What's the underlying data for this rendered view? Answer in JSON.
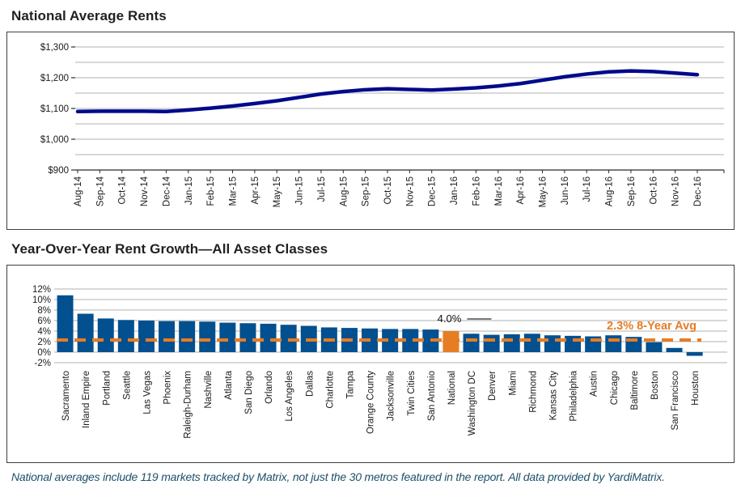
{
  "page": {
    "footnote": "National averages include 119 markets tracked by Matrix, not just the 30 metros featured in the report. All data provided by YardiMatrix."
  },
  "colors": {
    "line_series": "#000a8c",
    "bar_fill": "#02508f",
    "accent_orange": "#e67d23",
    "gridline": "#d8d8d8",
    "axis_line": "#2b2b2b",
    "axis_text": "#1a1a1a",
    "annotation_text": "#111111",
    "footnote_text": "#1d5068"
  },
  "chart_data": [
    {
      "type": "line",
      "title": "National Average Rents",
      "x": [
        "Aug-14",
        "Sep-14",
        "Oct-14",
        "Nov-14",
        "Dec-14",
        "Jan-15",
        "Feb-15",
        "Mar-15",
        "Apr-15",
        "May-15",
        "Jun-15",
        "Jul-15",
        "Aug-15",
        "Sep-15",
        "Oct-15",
        "Nov-15",
        "Dec-15",
        "Jan-16",
        "Feb-16",
        "Mar-16",
        "Apr-16",
        "May-16",
        "Jun-16",
        "Jul-16",
        "Aug-16",
        "Sep-16",
        "Oct-16",
        "Nov-16",
        "Dec-16"
      ],
      "values": [
        1090,
        1091,
        1091,
        1091,
        1090,
        1095,
        1101,
        1108,
        1116,
        1125,
        1136,
        1147,
        1155,
        1161,
        1164,
        1162,
        1160,
        1163,
        1167,
        1173,
        1181,
        1192,
        1203,
        1212,
        1219,
        1222,
        1220,
        1215,
        1210
      ],
      "ylim": [
        900,
        1300
      ],
      "grid_minor_step": 50,
      "yticks": [
        [
          900,
          "$900"
        ],
        [
          1000,
          "$1,000"
        ],
        [
          1100,
          "$1,100"
        ],
        [
          1200,
          "$1,200"
        ],
        [
          1300,
          "$1,300"
        ]
      ],
      "grid": true,
      "legend": "none"
    },
    {
      "type": "bar",
      "title": "Year-Over-Year Rent Growth—All Asset Classes",
      "categories": [
        "Sacramento",
        "Inland Empire",
        "Portland",
        "Seattle",
        "Las Vegas",
        "Phoenix",
        "Raleigh-Durham",
        "Nashville",
        "Atlanta",
        "San Diego",
        "Orlando",
        "Los Angeles",
        "Dallas",
        "Charlotte",
        "Tampa",
        "Orange County",
        "Jacksonville",
        "Twin Cities",
        "San Antonio",
        "National",
        "Washington DC",
        "Denver",
        "Miami",
        "Richmond",
        "Kansas City",
        "Philadelphia",
        "Austin",
        "Chicago",
        "Baltimore",
        "Boston",
        "San Francisco",
        "Houston"
      ],
      "values": [
        10.8,
        7.3,
        6.4,
        6.1,
        6.0,
        5.9,
        5.9,
        5.8,
        5.6,
        5.5,
        5.4,
        5.2,
        5.0,
        4.7,
        4.6,
        4.5,
        4.4,
        4.4,
        4.3,
        4.0,
        3.5,
        3.3,
        3.4,
        3.5,
        3.2,
        3.1,
        3.0,
        3.2,
        2.9,
        1.9,
        0.8,
        -0.7
      ],
      "highlight_category": "National",
      "ylim": [
        -2,
        12
      ],
      "yticks": [
        [
          12,
          "12%"
        ],
        [
          10,
          "10%"
        ],
        [
          8,
          "8%"
        ],
        [
          6,
          "6%"
        ],
        [
          4,
          "4%"
        ],
        [
          2,
          "2%"
        ],
        [
          0,
          "0%"
        ],
        [
          -2,
          "-2%"
        ]
      ],
      "grid": true,
      "legend": "none",
      "annotations": {
        "highlight_value_label": "4.0%",
        "avg_line_value": 2.3,
        "avg_line_label": "2.3% 8-Year Avg"
      }
    }
  ]
}
